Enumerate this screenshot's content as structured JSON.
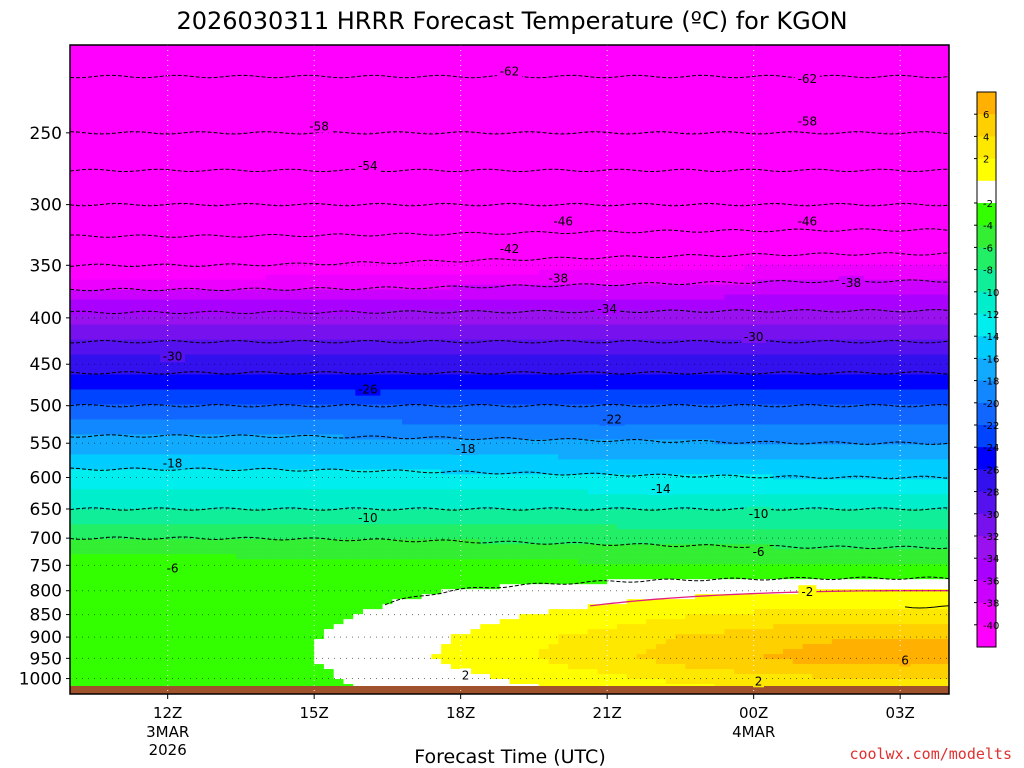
{
  "chart_data": {
    "type": "heatmap",
    "title": "2026030311 HRRR Forecast Temperature (ºC) for KGON",
    "xlabel": "Forecast Time (UTC)",
    "ylabel": "",
    "credit": "coolwx.com/modelts",
    "y_scale": "log-pressure",
    "ylim": [
      1040,
      200
    ],
    "y_ticks": [
      250,
      300,
      350,
      400,
      450,
      500,
      550,
      600,
      650,
      700,
      750,
      800,
      850,
      900,
      950,
      1000
    ],
    "y_tick_labels": [
      "250",
      "300",
      "350",
      "400",
      "450",
      "500",
      "550",
      "600",
      "650",
      "700",
      "750",
      "800",
      "850",
      "900",
      "950",
      "1000"
    ],
    "xlim": [
      10,
      28
    ],
    "x_ticks": [
      {
        "x": 12,
        "label": "12Z",
        "sub1": "3MAR",
        "sub2": "2026"
      },
      {
        "x": 15,
        "label": "15Z",
        "sub1": "",
        "sub2": ""
      },
      {
        "x": 18,
        "label": "18Z",
        "sub1": "",
        "sub2": ""
      },
      {
        "x": 21,
        "label": "21Z",
        "sub1": "",
        "sub2": ""
      },
      {
        "x": 24,
        "label": "00Z",
        "sub1": "4MAR",
        "sub2": ""
      },
      {
        "x": 27,
        "label": "03Z",
        "sub1": "",
        "sub2": ""
      }
    ],
    "grid": true,
    "legend": "colorbar-right",
    "colorbar": {
      "levels": [
        8,
        6,
        4,
        2,
        0,
        -2,
        -4,
        -6,
        -8,
        -10,
        -12,
        -14,
        -16,
        -18,
        -20,
        -22,
        -24,
        -26,
        -28,
        -30,
        -32,
        -34,
        -36,
        -38,
        -40,
        -42
      ],
      "labels": [
        "6",
        "4",
        "2",
        "-2",
        "-4",
        "-6",
        "-8",
        "-10",
        "-12",
        "-14",
        "-16",
        "-18",
        "-20",
        "-22",
        "-24",
        "-26",
        "-28",
        "-30",
        "-32",
        "-34",
        "-36",
        "-38",
        "-40"
      ],
      "colors": [
        "#ffb000",
        "#ffd000",
        "#ffe800",
        "#ffff00",
        "#ffffff",
        "#33ff00",
        "#33ee33",
        "#22ee66",
        "#11ee99",
        "#00eecc",
        "#00eeee",
        "#00ccff",
        "#11aaff",
        "#1188ff",
        "#1166ff",
        "#0044ff",
        "#0000ff",
        "#3311ee",
        "#5511ee",
        "#7711ee",
        "#9911ee",
        "#aa00ff",
        "#cc00ff",
        "#ee00ff",
        "#ff00ff"
      ]
    },
    "temperature_profile": {
      "pressure_levels": [
        200,
        250,
        300,
        350,
        400,
        450,
        500,
        550,
        600,
        650,
        700,
        750,
        800,
        850,
        900,
        950,
        1000,
        1040
      ],
      "temps_12Z": [
        -64,
        -58,
        -50,
        -42,
        -33,
        -27,
        -22,
        -17,
        -13,
        -10,
        -6,
        -3,
        -3,
        -3,
        -3,
        -3,
        -3,
        -3
      ],
      "temps_03Z": [
        -64,
        -58,
        -50,
        -40,
        -33,
        -27,
        -22,
        -18,
        -14,
        -10,
        -7,
        -4,
        0,
        3,
        6,
        7,
        4,
        2
      ]
    },
    "contour_labels": [
      {
        "text": "-62",
        "x": 19.0,
        "p": 214
      },
      {
        "text": "-62",
        "x": 25.1,
        "p": 218
      },
      {
        "text": "-58",
        "x": 15.1,
        "p": 246
      },
      {
        "text": "-58",
        "x": 25.1,
        "p": 243
      },
      {
        "text": "-54",
        "x": 16.1,
        "p": 272
      },
      {
        "text": "-46",
        "x": 20.1,
        "p": 313
      },
      {
        "text": "-46",
        "x": 25.1,
        "p": 313
      },
      {
        "text": "-42",
        "x": 19.0,
        "p": 336
      },
      {
        "text": "-38",
        "x": 20.0,
        "p": 362
      },
      {
        "text": "-38",
        "x": 26.0,
        "p": 366
      },
      {
        "text": "-34",
        "x": 21.0,
        "p": 391
      },
      {
        "text": "-30",
        "x": 24.0,
        "p": 420
      },
      {
        "text": "-30",
        "x": 12.1,
        "p": 441
      },
      {
        "text": "-26",
        "x": 16.1,
        "p": 480
      },
      {
        "text": "-22",
        "x": 21.1,
        "p": 518
      },
      {
        "text": "-18",
        "x": 18.1,
        "p": 558
      },
      {
        "text": "-18",
        "x": 12.1,
        "p": 579
      },
      {
        "text": "-14",
        "x": 22.1,
        "p": 618
      },
      {
        "text": "-10",
        "x": 16.1,
        "p": 665
      },
      {
        "text": "-10",
        "x": 24.1,
        "p": 658
      },
      {
        "text": "-6",
        "x": 24.1,
        "p": 725
      },
      {
        "text": "-6",
        "x": 12.1,
        "p": 756
      },
      {
        "text": "-2",
        "x": 25.1,
        "p": 803
      },
      {
        "text": "2",
        "x": 18.1,
        "p": 992
      },
      {
        "text": "2",
        "x": 24.1,
        "p": 1007
      },
      {
        "text": "6",
        "x": 27.1,
        "p": 955
      }
    ]
  }
}
